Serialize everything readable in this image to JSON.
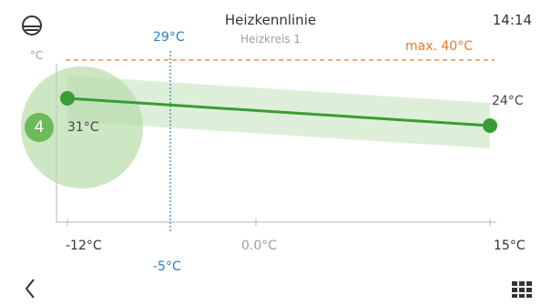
{
  "header": {
    "title": "Heizkennlinie",
    "subtitle": "Heizkreis 1",
    "time": "14:14"
  },
  "chart": {
    "unit": "°C",
    "max_label": "max. 40°C",
    "marker_label": "29°C",
    "marker_x_label": "-5°C",
    "left_point_label": "31°C",
    "right_point_label": "24°C",
    "badge": "4",
    "x_ticks": [
      "-12°C",
      "0.0°C",
      "15°C"
    ]
  },
  "chart_data": {
    "type": "line",
    "title": "Heizkennlinie",
    "x": [
      -12,
      15
    ],
    "values": [
      31,
      24
    ],
    "xlim": [
      -12,
      15
    ],
    "max": 40,
    "marker_x": -5,
    "marker_value": 29,
    "band": true
  },
  "icons": {
    "status": "shower-head-icon",
    "back": "chevron-left-icon",
    "menu": "grid-menu-icon"
  },
  "colors": {
    "line": "#3b9b35",
    "band": "#d8ecd2",
    "highlight": "#b8dcab",
    "max": "#e77a2c",
    "marker": "#2a7fbf",
    "axis": "#b5b5b5"
  }
}
